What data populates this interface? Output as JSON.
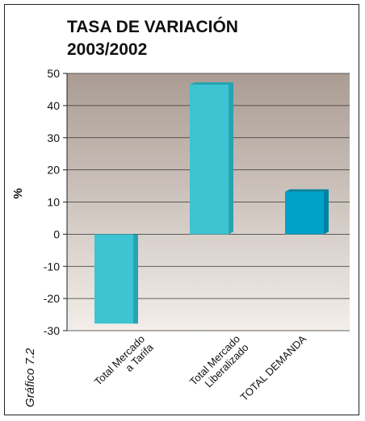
{
  "figure": {
    "side_label": "Gráfico 7.2"
  },
  "chart_data": {
    "type": "bar",
    "title": [
      "TASA DE VARIACIÓN",
      "2003/2002"
    ],
    "ylabel": "%",
    "xlabel": "",
    "ylim": [
      -30,
      50
    ],
    "yticks": [
      50,
      40,
      30,
      20,
      10,
      0,
      -10,
      -20,
      -30
    ],
    "grid": true,
    "categories": [
      [
        "Total Mercado",
        "a Tarifa"
      ],
      [
        "Total Mercado",
        "Liberalizado"
      ],
      [
        "TOTAL DEMANDA"
      ]
    ],
    "values": [
      -27.8,
      46.5,
      13.2
    ],
    "colors": {
      "bars": [
        "#3cc4d2",
        "#3cc4d2",
        "#00a3c6"
      ],
      "bar_shade": [
        "#27a3b2",
        "#27a3b2",
        "#0083a3"
      ],
      "background_top": "#aa9c93",
      "background_bottom": "#f3eeea"
    }
  }
}
